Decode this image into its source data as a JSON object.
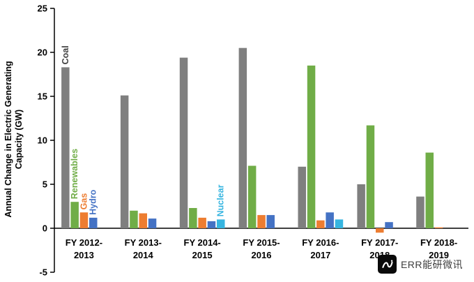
{
  "watermark": {
    "text": "ERR能研微讯",
    "logo": "err-logo"
  },
  "chart_data": {
    "type": "bar",
    "title": "",
    "ylabel_lines": [
      "Annual Change in Electric Generating",
      "Capacity (GW)"
    ],
    "xlabel": "",
    "ylim": [
      -5,
      25
    ],
    "yticks": [
      -5,
      0,
      5,
      10,
      15,
      20,
      25
    ],
    "grid": "off",
    "legend_position": "none",
    "categories": [
      [
        "FY 2012-",
        "2013"
      ],
      [
        "FY 2013-",
        "2014"
      ],
      [
        "FY 2014-",
        "2015"
      ],
      [
        "FY 2015-",
        "2016"
      ],
      [
        "FY 2016-",
        "2017"
      ],
      [
        "FY 2017-",
        "2018"
      ],
      [
        "FY 2018-",
        "2019"
      ]
    ],
    "series": [
      {
        "name": "Coal",
        "color": "#7F7F7F",
        "values": [
          18.3,
          15.1,
          19.4,
          20.5,
          7.0,
          5.0,
          3.6
        ]
      },
      {
        "name": "Renewables",
        "color": "#70AD47",
        "values": [
          3.0,
          2.0,
          2.3,
          7.1,
          18.5,
          11.7,
          8.6
        ]
      },
      {
        "name": "Gas",
        "color": "#ED7D31",
        "values": [
          1.8,
          1.7,
          1.2,
          1.5,
          0.9,
          -0.5,
          0.1
        ]
      },
      {
        "name": "Hydro",
        "color": "#4472C4",
        "values": [
          1.2,
          1.1,
          0.8,
          1.5,
          1.8,
          0.7,
          0
        ]
      },
      {
        "name": "Nuclear",
        "color": "#36B5E0",
        "values": [
          0,
          0,
          1.0,
          0,
          1.0,
          0,
          0
        ]
      }
    ],
    "bar_labels": [
      {
        "text": "Coal",
        "series": 0,
        "group": 0,
        "color": "#404040"
      },
      {
        "text": "Renewables",
        "series": 1,
        "group": 0,
        "color": "#70AD47"
      },
      {
        "text": "Gas",
        "series": 2,
        "group": 0,
        "color": "#ED7D31"
      },
      {
        "text": "Hydro",
        "series": 3,
        "group": 0,
        "color": "#4472C4"
      },
      {
        "text": "Nuclear",
        "series": 4,
        "group": 2,
        "color": "#36B5E0"
      }
    ]
  }
}
